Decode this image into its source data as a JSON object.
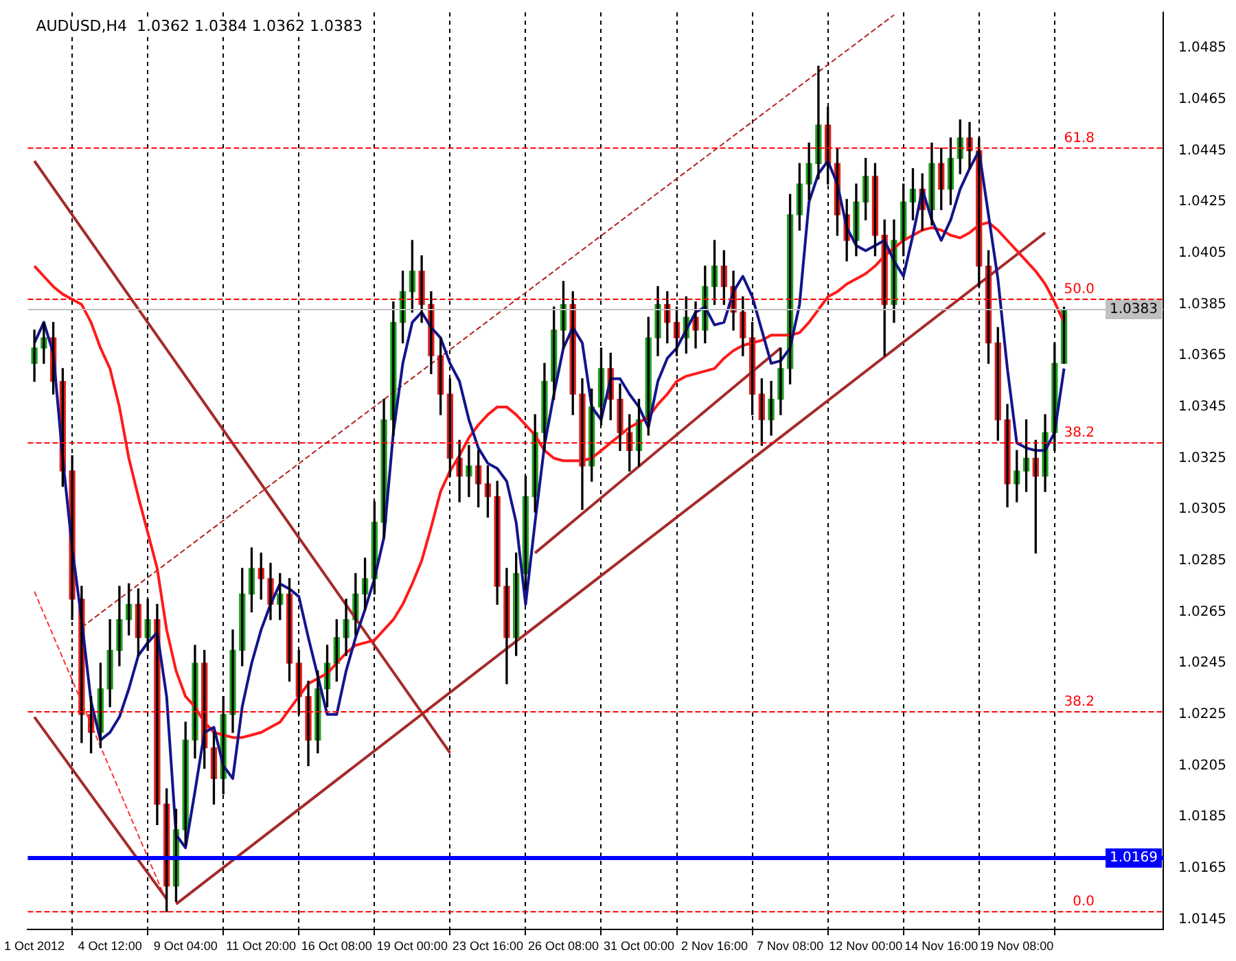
{
  "chart_data": {
    "type": "candlestick",
    "title": "AUDUSD,H4  1.0362 1.0384 1.0362 1.0383",
    "categories": [
      "1 Oct 2012",
      null,
      null,
      null,
      null,
      null,
      null,
      null,
      "4 Oct 12:00",
      null,
      null,
      null,
      null,
      null,
      null,
      null,
      "9 Oct 04:00",
      null,
      null,
      null,
      null,
      null,
      null,
      null,
      "11 Oct 20:00",
      null,
      null,
      null,
      null,
      null,
      null,
      null,
      "16 Oct 08:00",
      null,
      null,
      null,
      null,
      null,
      null,
      null,
      "19 Oct 00:00",
      null,
      null,
      null,
      null,
      null,
      null,
      null,
      "23 Oct 16:00",
      null,
      null,
      null,
      null,
      null,
      null,
      null,
      "26 Oct 08:00",
      null,
      null,
      null,
      null,
      null,
      null,
      null,
      "31 Oct 00:00",
      null,
      null,
      null,
      null,
      null,
      null,
      null,
      "2 Nov 16:00",
      null,
      null,
      null,
      null,
      null,
      null,
      null,
      "7 Nov 08:00",
      null,
      null,
      null,
      null,
      null,
      null,
      null,
      "12 Nov 00:00",
      null,
      null,
      null,
      null,
      null,
      null,
      null,
      "14 Nov 16:00",
      null,
      null,
      null,
      null,
      null,
      null,
      null,
      "19 Nov 08:00",
      null,
      null,
      null,
      null,
      null
    ],
    "ohlc": [
      [
        1.0362,
        1.0375,
        1.0355,
        1.0368
      ],
      [
        1.0368,
        1.0378,
        1.0362,
        1.0372
      ],
      [
        1.0372,
        1.0378,
        1.035,
        1.0355
      ],
      [
        1.0355,
        1.036,
        1.0314,
        1.032
      ],
      [
        1.032,
        1.0326,
        1.0262,
        1.027
      ],
      [
        1.027,
        1.0275,
        1.0214,
        1.0225
      ],
      [
        1.0225,
        1.0232,
        1.021,
        1.0218
      ],
      [
        1.0218,
        1.0245,
        1.0212,
        1.0235
      ],
      [
        1.0235,
        1.0262,
        1.0228,
        1.025
      ],
      [
        1.025,
        1.0275,
        1.0244,
        1.0262
      ],
      [
        1.0262,
        1.0276,
        1.0256,
        1.0268
      ],
      [
        1.0268,
        1.0274,
        1.0248,
        1.0255
      ],
      [
        1.0255,
        1.027,
        1.025,
        1.0262
      ],
      [
        1.0262,
        1.0268,
        1.0182,
        1.019
      ],
      [
        1.019,
        1.0196,
        1.0148,
        1.0158
      ],
      [
        1.0158,
        1.0188,
        1.0152,
        1.018
      ],
      [
        1.018,
        1.0222,
        1.0174,
        1.0215
      ],
      [
        1.0215,
        1.0252,
        1.0208,
        1.0245
      ],
      [
        1.0245,
        1.025,
        1.0204,
        1.0212
      ],
      [
        1.0212,
        1.0218,
        1.019,
        1.02
      ],
      [
        1.02,
        1.0232,
        1.0194,
        1.0225
      ],
      [
        1.0225,
        1.0258,
        1.0218,
        1.025
      ],
      [
        1.025,
        1.0282,
        1.0244,
        1.0272
      ],
      [
        1.0272,
        1.029,
        1.0265,
        1.0282
      ],
      [
        1.0282,
        1.0288,
        1.027,
        1.0278
      ],
      [
        1.0278,
        1.0284,
        1.0262,
        1.0268
      ],
      [
        1.0268,
        1.028,
        1.0262,
        1.0272
      ],
      [
        1.0272,
        1.0278,
        1.0238,
        1.0245
      ],
      [
        1.0245,
        1.025,
        1.0225,
        1.0232
      ],
      [
        1.0232,
        1.0238,
        1.0205,
        1.0215
      ],
      [
        1.0215,
        1.0242,
        1.021,
        1.0235
      ],
      [
        1.0235,
        1.0252,
        1.0228,
        1.0245
      ],
      [
        1.0245,
        1.0262,
        1.0238,
        1.0255
      ],
      [
        1.0255,
        1.027,
        1.0248,
        1.0262
      ],
      [
        1.0262,
        1.028,
        1.0256,
        1.0272
      ],
      [
        1.0272,
        1.0286,
        1.0266,
        1.0278
      ],
      [
        1.0278,
        1.0308,
        1.0272,
        1.03
      ],
      [
        1.03,
        1.0348,
        1.0294,
        1.034
      ],
      [
        1.034,
        1.0386,
        1.0334,
        1.0378
      ],
      [
        1.0378,
        1.0398,
        1.037,
        1.039
      ],
      [
        1.039,
        1.041,
        1.0382,
        1.0398
      ],
      [
        1.0398,
        1.0404,
        1.0378,
        1.0385
      ],
      [
        1.0385,
        1.039,
        1.0358,
        1.0365
      ],
      [
        1.0365,
        1.0372,
        1.0342,
        1.035
      ],
      [
        1.035,
        1.0356,
        1.0318,
        1.0325
      ],
      [
        1.0325,
        1.0332,
        1.0308,
        1.0318
      ],
      [
        1.0318,
        1.033,
        1.031,
        1.0322
      ],
      [
        1.0322,
        1.0328,
        1.0306,
        1.0315
      ],
      [
        1.0315,
        1.0322,
        1.0302,
        1.031
      ],
      [
        1.031,
        1.0316,
        1.0268,
        1.0275
      ],
      [
        1.0275,
        1.0282,
        1.0237,
        1.0255
      ],
      [
        1.0255,
        1.0288,
        1.0248,
        1.028
      ],
      [
        1.028,
        1.0318,
        1.0274,
        1.031
      ],
      [
        1.031,
        1.0342,
        1.0304,
        1.0335
      ],
      [
        1.0335,
        1.0362,
        1.0328,
        1.0355
      ],
      [
        1.0355,
        1.0384,
        1.0348,
        1.0375
      ],
      [
        1.0375,
        1.0394,
        1.0368,
        1.0385
      ],
      [
        1.0385,
        1.039,
        1.0342,
        1.035
      ],
      [
        1.035,
        1.0356,
        1.0305,
        1.0322
      ],
      [
        1.0322,
        1.0352,
        1.0316,
        1.0345
      ],
      [
        1.0345,
        1.0368,
        1.0338,
        1.036
      ],
      [
        1.036,
        1.0366,
        1.034,
        1.0348
      ],
      [
        1.0348,
        1.0354,
        1.0328,
        1.0335
      ],
      [
        1.0335,
        1.0342,
        1.032,
        1.0328
      ],
      [
        1.0328,
        1.0348,
        1.0322,
        1.034
      ],
      [
        1.034,
        1.038,
        1.0334,
        1.0372
      ],
      [
        1.0372,
        1.0392,
        1.0365,
        1.0385
      ],
      [
        1.0385,
        1.039,
        1.037,
        1.0378
      ],
      [
        1.0378,
        1.0384,
        1.0365,
        1.0372
      ],
      [
        1.0372,
        1.0388,
        1.0366,
        1.038
      ],
      [
        1.038,
        1.0386,
        1.0368,
        1.0375
      ],
      [
        1.0375,
        1.04,
        1.037,
        1.0392
      ],
      [
        1.0392,
        1.041,
        1.0385,
        1.04
      ],
      [
        1.04,
        1.0406,
        1.0385,
        1.0392
      ],
      [
        1.0392,
        1.0398,
        1.0375,
        1.0382
      ],
      [
        1.0382,
        1.0388,
        1.0365,
        1.0372
      ],
      [
        1.0372,
        1.0378,
        1.0342,
        1.035
      ],
      [
        1.035,
        1.0356,
        1.033,
        1.034
      ],
      [
        1.034,
        1.0355,
        1.0334,
        1.0348
      ],
      [
        1.0348,
        1.0368,
        1.0342,
        1.036
      ],
      [
        1.036,
        1.0428,
        1.0354,
        1.042
      ],
      [
        1.042,
        1.044,
        1.0414,
        1.0432
      ],
      [
        1.0432,
        1.0448,
        1.0426,
        1.044
      ],
      [
        1.044,
        1.0478,
        1.0434,
        1.0455
      ],
      [
        1.0455,
        1.0462,
        1.0432,
        1.044
      ],
      [
        1.044,
        1.0446,
        1.0412,
        1.042
      ],
      [
        1.042,
        1.0426,
        1.0402,
        1.041
      ],
      [
        1.041,
        1.0432,
        1.0404,
        1.0425
      ],
      [
        1.0425,
        1.0442,
        1.0418,
        1.0435
      ],
      [
        1.0435,
        1.044,
        1.0404,
        1.0412
      ],
      [
        1.0412,
        1.0418,
        1.0365,
        1.0385
      ],
      [
        1.0385,
        1.0418,
        1.0378,
        1.041
      ],
      [
        1.041,
        1.0432,
        1.0404,
        1.0425
      ],
      [
        1.0425,
        1.0438,
        1.0418,
        1.043
      ],
      [
        1.043,
        1.0436,
        1.0414,
        1.0422
      ],
      [
        1.0422,
        1.0448,
        1.0416,
        1.044
      ],
      [
        1.044,
        1.0446,
        1.0422,
        1.043
      ],
      [
        1.043,
        1.045,
        1.0424,
        1.0442
      ],
      [
        1.0442,
        1.0457,
        1.0436,
        1.045
      ],
      [
        1.045,
        1.0456,
        1.0438,
        1.0445
      ],
      [
        1.0445,
        1.045,
        1.0392,
        1.04
      ],
      [
        1.04,
        1.0406,
        1.0362,
        1.037
      ],
      [
        1.037,
        1.0376,
        1.0332,
        1.034
      ],
      [
        1.034,
        1.0346,
        1.0306,
        1.0315
      ],
      [
        1.0315,
        1.0328,
        1.0308,
        1.032
      ],
      [
        1.032,
        1.034,
        1.0312,
        1.0325
      ],
      [
        1.0325,
        1.0332,
        1.0288,
        1.0318
      ],
      [
        1.0318,
        1.0342,
        1.0312,
        1.0335
      ],
      [
        1.0335,
        1.037,
        1.0328,
        1.0362
      ],
      [
        1.0362,
        1.0384,
        1.0362,
        1.0383
      ]
    ],
    "series": [
      {
        "type": "line",
        "color": "#14148c",
        "values": [
          1.037,
          1.0378,
          1.0366,
          1.0325,
          1.029,
          1.0262,
          1.023,
          1.0215,
          1.0218,
          1.0224,
          1.0235,
          1.0248,
          1.0253,
          1.0257,
          1.0232,
          1.0178,
          1.0173,
          1.0195,
          1.0218,
          1.022,
          1.0205,
          1.02,
          1.0228,
          1.0245,
          1.0258,
          1.0268,
          1.0276,
          1.0274,
          1.0271,
          1.0255,
          1.024,
          1.0225,
          1.0225,
          1.0242,
          1.0255,
          1.0266,
          1.0278,
          1.0294,
          1.0335,
          1.0362,
          1.0378,
          1.0382,
          1.0376,
          1.0372,
          1.0362,
          1.0355,
          1.034,
          1.0329,
          1.0323,
          1.0321,
          1.0316,
          1.03,
          1.0268,
          1.03,
          1.033,
          1.035,
          1.0368,
          1.0376,
          1.037,
          1.0345,
          1.034,
          1.0356,
          1.0356,
          1.035,
          1.0345,
          1.0337,
          1.0355,
          1.0364,
          1.0368,
          1.0375,
          1.0382,
          1.0384,
          1.0377,
          1.0378,
          1.039,
          1.0396,
          1.0388,
          1.0375,
          1.0362,
          1.0363,
          1.0368,
          1.0385,
          1.0425,
          1.0436,
          1.0441,
          1.0432,
          1.0415,
          1.0408,
          1.0406,
          1.0408,
          1.041,
          1.0402,
          1.0396,
          1.0412,
          1.043,
          1.0418,
          1.041,
          1.0418,
          1.043,
          1.0438,
          1.0445,
          1.042,
          1.0395,
          1.036,
          1.0331,
          1.0329,
          1.0328,
          1.0328,
          1.0335,
          1.036
        ]
      },
      {
        "type": "line",
        "color": "#ff1a1a",
        "values": [
          1.04,
          1.0396,
          1.0392,
          1.0389,
          1.0387,
          1.0385,
          1.0378,
          1.0368,
          1.036,
          1.0345,
          1.0325,
          1.031,
          1.0296,
          1.0282,
          1.0258,
          1.0242,
          1.0232,
          1.0228,
          1.0222,
          1.0218,
          1.0217,
          1.0216,
          1.0216,
          1.0217,
          1.0218,
          1.022,
          1.0222,
          1.0227,
          1.0232,
          1.0237,
          1.0239,
          1.0241,
          1.0245,
          1.0249,
          1.0252,
          1.0253,
          1.0254,
          1.0258,
          1.0262,
          1.0268,
          1.0276,
          1.0285,
          1.0298,
          1.0312,
          1.032,
          1.0326,
          1.0333,
          1.0338,
          1.0342,
          1.0345,
          1.0345,
          1.0342,
          1.0338,
          1.0334,
          1.0328,
          1.0325,
          1.0324,
          1.0324,
          1.0324,
          1.0325,
          1.0328,
          1.0331,
          1.0334,
          1.0337,
          1.0339,
          1.0341,
          1.0346,
          1.035,
          1.0355,
          1.0357,
          1.0358,
          1.0359,
          1.036,
          1.0364,
          1.0367,
          1.0369,
          1.037,
          1.0371,
          1.0373,
          1.0373,
          1.0373,
          1.0374,
          1.0378,
          1.0383,
          1.0388,
          1.039,
          1.0393,
          1.0395,
          1.0397,
          1.04,
          1.0404,
          1.0407,
          1.041,
          1.0412,
          1.0414,
          1.0415,
          1.0414,
          1.0412,
          1.0411,
          1.0413,
          1.0416,
          1.0417,
          1.0414,
          1.041,
          1.0406,
          1.0402,
          1.0398,
          1.0393,
          1.0386,
          1.0378
        ]
      },
      {
        "type": "line",
        "color": "#a52a2a",
        "line_style": "solid",
        "values": [
          1.0441,
          null,
          null,
          null,
          null,
          null,
          null,
          null,
          null,
          null,
          null,
          null,
          null,
          null,
          null,
          null,
          null,
          null,
          null,
          null,
          null,
          null,
          null,
          null,
          null,
          null,
          null,
          null,
          null,
          null,
          null,
          null,
          null,
          null,
          null,
          null,
          null,
          null,
          null,
          null,
          null,
          null,
          null,
          null,
          1.021,
          null,
          null,
          null,
          null,
          null,
          null,
          null,
          null,
          null,
          null,
          null,
          null,
          null,
          null,
          null,
          null,
          null,
          null,
          null,
          null,
          null,
          null,
          null,
          null,
          null,
          null,
          null,
          null,
          null,
          null,
          null,
          null,
          null,
          null,
          null,
          null,
          null,
          null,
          null,
          null,
          null,
          null,
          null,
          null,
          null,
          null,
          null,
          null,
          null,
          null,
          null,
          null,
          null,
          null,
          null,
          null,
          null,
          null,
          null,
          null,
          null,
          null,
          null,
          null,
          null
        ]
      },
      {
        "type": "line",
        "color": "#a52a2a",
        "line_style": "solid",
        "values": [
          1.0224,
          null,
          null,
          null,
          null,
          null,
          null,
          null,
          null,
          null,
          null,
          null,
          null,
          null,
          1.0153,
          null,
          null,
          null,
          null,
          null,
          null,
          null,
          null,
          null,
          null,
          null,
          null,
          null,
          null,
          null,
          null,
          null,
          null,
          null,
          null,
          null,
          null,
          null,
          null,
          null,
          null,
          null,
          null,
          null,
          null,
          null,
          null,
          null,
          null,
          null,
          null,
          null,
          null,
          null,
          null,
          null,
          null,
          null,
          null,
          null,
          null,
          null,
          null,
          null,
          null,
          null,
          null,
          null,
          null,
          null,
          null,
          null,
          null,
          null,
          null,
          null,
          null,
          null,
          null,
          null,
          null,
          null,
          null,
          null,
          null,
          null,
          null,
          null,
          null,
          null,
          null,
          null,
          null,
          null,
          null,
          null,
          null,
          null,
          null,
          null,
          null,
          null,
          null,
          null,
          null,
          null,
          null,
          null,
          null,
          null
        ]
      },
      {
        "type": "line",
        "color": "#ff3333",
        "line_style": "dashed",
        "values": [
          1.0273,
          null,
          null,
          null,
          null,
          null,
          null,
          null,
          null,
          null,
          null,
          null,
          null,
          null,
          1.0152,
          null,
          null,
          null,
          null,
          null,
          null,
          null,
          null,
          null,
          null,
          null,
          null,
          null,
          null,
          null,
          null,
          null,
          null,
          null,
          null,
          null,
          null,
          null,
          null,
          null,
          null,
          null,
          null,
          null,
          null,
          null,
          null,
          null,
          null,
          null,
          null,
          null,
          null,
          null,
          null,
          null,
          null,
          null,
          null,
          null,
          null,
          null,
          null,
          null,
          null,
          null,
          null,
          null,
          null,
          null,
          null,
          null,
          null,
          null,
          null,
          null,
          null,
          null,
          null,
          null,
          null,
          null,
          null,
          null,
          null,
          null,
          null,
          null,
          null,
          null,
          null,
          null,
          null,
          null,
          null,
          null,
          null,
          null,
          null,
          null,
          null,
          null,
          null,
          null,
          null,
          null,
          null,
          null,
          null,
          null
        ]
      },
      {
        "type": "line",
        "color": "#b22222",
        "line_style": "dashed",
        "values": [
          null,
          null,
          null,
          null,
          null,
          1.0259,
          null,
          null,
          null,
          null,
          null,
          null,
          null,
          null,
          null,
          null,
          null,
          null,
          null,
          null,
          null,
          null,
          null,
          null,
          null,
          null,
          null,
          null,
          null,
          null,
          null,
          null,
          null,
          null,
          null,
          null,
          null,
          null,
          null,
          null,
          null,
          null,
          null,
          null,
          null,
          null,
          null,
          null,
          null,
          null,
          null,
          null,
          null,
          null,
          null,
          null,
          null,
          null,
          null,
          null,
          null,
          null,
          null,
          null,
          null,
          null,
          null,
          null,
          null,
          null,
          null,
          null,
          null,
          null,
          null,
          null,
          null,
          null,
          null,
          null,
          null,
          null,
          null,
          null,
          null,
          null,
          null,
          null,
          null,
          null,
          null,
          1.0498,
          null,
          null,
          null,
          null,
          null,
          null,
          null,
          null,
          null,
          null,
          null,
          null,
          null,
          null,
          null,
          null,
          null,
          null
        ]
      },
      {
        "type": "line",
        "color": "#a52a2a",
        "line_style": "solid",
        "values": [
          null,
          null,
          null,
          null,
          null,
          null,
          null,
          null,
          null,
          null,
          null,
          null,
          null,
          null,
          null,
          1.0151,
          null,
          null,
          null,
          null,
          null,
          null,
          null,
          null,
          null,
          null,
          null,
          null,
          null,
          null,
          null,
          null,
          null,
          null,
          null,
          null,
          null,
          null,
          null,
          null,
          null,
          null,
          null,
          null,
          null,
          null,
          null,
          null,
          null,
          null,
          null,
          null,
          null,
          null,
          null,
          null,
          null,
          null,
          null,
          null,
          null,
          null,
          null,
          null,
          null,
          null,
          null,
          null,
          null,
          null,
          null,
          null,
          null,
          null,
          null,
          null,
          null,
          null,
          null,
          null,
          null,
          null,
          null,
          null,
          null,
          null,
          null,
          null,
          null,
          null,
          null,
          null,
          null,
          null,
          null,
          null,
          null,
          null,
          null,
          null,
          null,
          null,
          null,
          null,
          null,
          null,
          null,
          1.0413,
          null,
          null
        ]
      },
      {
        "type": "line",
        "color": "#a52a2a",
        "line_style": "solid",
        "values": [
          null,
          null,
          null,
          null,
          null,
          null,
          null,
          null,
          null,
          null,
          null,
          null,
          null,
          null,
          null,
          null,
          null,
          null,
          null,
          null,
          null,
          null,
          null,
          null,
          null,
          null,
          null,
          null,
          null,
          null,
          null,
          null,
          null,
          null,
          null,
          null,
          null,
          null,
          null,
          null,
          null,
          null,
          null,
          null,
          null,
          null,
          null,
          null,
          null,
          null,
          null,
          null,
          null,
          1.0288,
          null,
          null,
          null,
          null,
          null,
          null,
          null,
          null,
          null,
          null,
          null,
          null,
          null,
          null,
          null,
          null,
          null,
          null,
          null,
          null,
          null,
          null,
          null,
          null,
          null,
          1.0368,
          null,
          null,
          null,
          null,
          null,
          null,
          null,
          null,
          null,
          null,
          null,
          null,
          null,
          null,
          null,
          null,
          null,
          null,
          null,
          null,
          null,
          null,
          null,
          null,
          null,
          null,
          null,
          null,
          null,
          null
        ]
      }
    ],
    "ylim": [
      1.0141,
      1.0499
    ],
    "yticks": [
      1.0145,
      1.0165,
      1.0185,
      1.0205,
      1.0225,
      1.0245,
      1.0265,
      1.0285,
      1.0305,
      1.0325,
      1.0345,
      1.0365,
      1.0385,
      1.0405,
      1.0425,
      1.0445,
      1.0465,
      1.0485
    ],
    "ref_lines": [
      {
        "axis": "y",
        "value": 1.0446,
        "color": "#ff0000",
        "line_style": "dashed"
      },
      {
        "axis": "y",
        "value": 1.0387,
        "color": "#ff0000",
        "line_style": "dashed"
      },
      {
        "axis": "y",
        "value": 1.0331,
        "color": "#ff0000",
        "line_style": "dashed"
      },
      {
        "axis": "y",
        "value": 1.0226,
        "color": "#ff0000",
        "line_style": "dashed"
      },
      {
        "axis": "y",
        "value": 1.0148,
        "color": "#ff0000",
        "line_style": "dashed"
      },
      {
        "axis": "y",
        "value": 1.0383,
        "label": "1.0383",
        "color": "#c0c0c0",
        "line_style": "solid"
      },
      {
        "axis": "y",
        "value": 1.0169,
        "label": "1.0169",
        "color": "#0000ff",
        "line_style": "solid"
      }
    ],
    "annotations": [
      {
        "text": "61.8",
        "y": 1.0446
      },
      {
        "text": "50.0",
        "y": 1.0387
      },
      {
        "text": "38.2",
        "y": 1.0331
      },
      {
        "text": "38.2",
        "y": 1.0226
      },
      {
        "text": "0.0",
        "y": 1.0148
      }
    ],
    "grid": "x",
    "legend": false
  }
}
